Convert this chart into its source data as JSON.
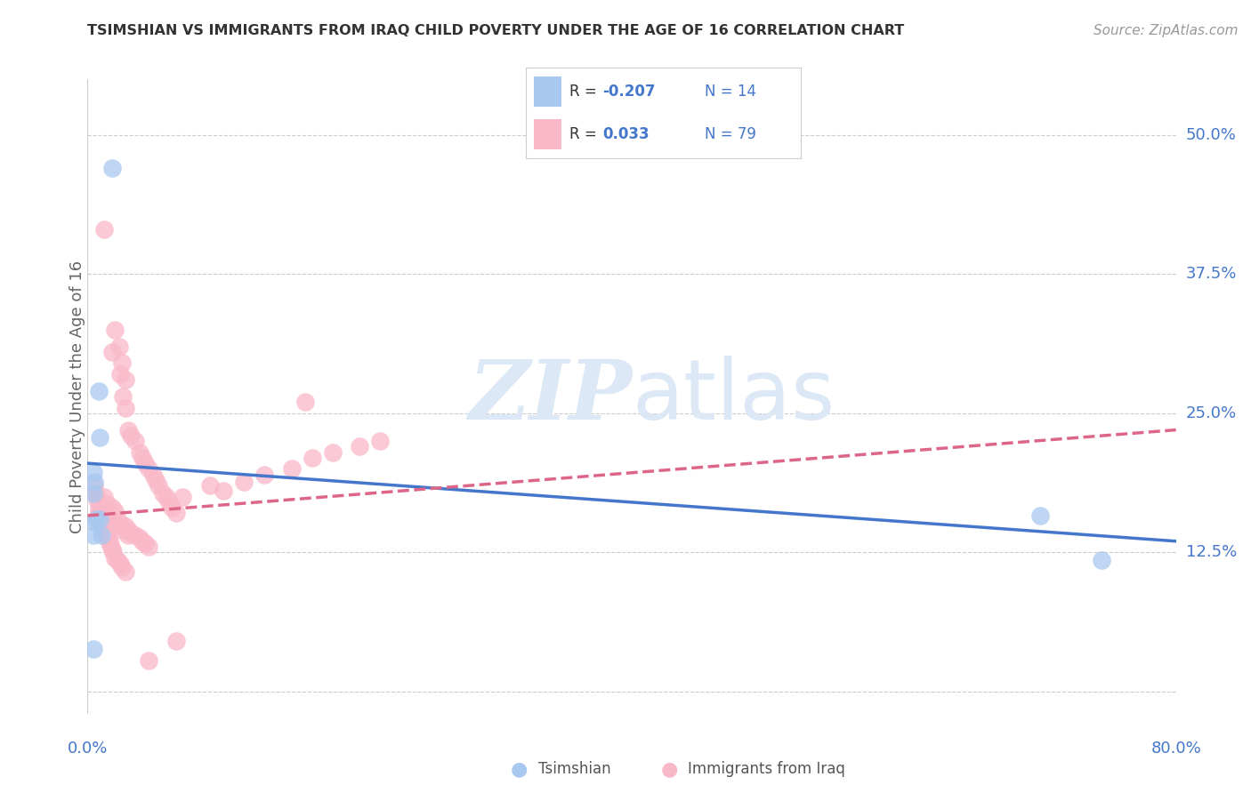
{
  "title": "TSIMSHIAN VS IMMIGRANTS FROM IRAQ CHILD POVERTY UNDER THE AGE OF 16 CORRELATION CHART",
  "source": "Source: ZipAtlas.com",
  "ylabel": "Child Poverty Under the Age of 16",
  "ytick_values": [
    0.0,
    0.125,
    0.25,
    0.375,
    0.5
  ],
  "ytick_labels": [
    "",
    "12.5%",
    "25.0%",
    "37.5%",
    "50.0%"
  ],
  "xlim": [
    0.0,
    0.8
  ],
  "ylim": [
    -0.02,
    0.55
  ],
  "color_tsimshian": "#a8c8f0",
  "color_iraq": "#f9b8c8",
  "color_line_tsimshian": "#4477cc",
  "color_line_iraq": "#dd6688",
  "background_color": "#ffffff",
  "tsimshian_x": [
    0.018,
    0.008,
    0.009,
    0.004,
    0.005,
    0.004,
    0.006,
    0.005,
    0.004,
    0.01,
    0.009,
    0.7,
    0.745,
    0.004
  ],
  "tsimshian_y": [
    0.47,
    0.27,
    0.228,
    0.197,
    0.188,
    0.178,
    0.155,
    0.152,
    0.14,
    0.14,
    0.155,
    0.158,
    0.118,
    0.038
  ],
  "iraq_x": [
    0.012,
    0.02,
    0.023,
    0.018,
    0.025,
    0.024,
    0.028,
    0.026,
    0.028,
    0.03,
    0.032,
    0.035,
    0.038,
    0.04,
    0.042,
    0.045,
    0.048,
    0.05,
    0.052,
    0.055,
    0.058,
    0.06,
    0.062,
    0.065,
    0.012,
    0.015,
    0.018,
    0.02,
    0.022,
    0.025,
    0.028,
    0.03,
    0.032,
    0.035,
    0.038,
    0.04,
    0.042,
    0.045,
    0.005,
    0.006,
    0.007,
    0.008,
    0.008,
    0.01,
    0.01,
    0.012,
    0.013,
    0.014,
    0.015,
    0.016,
    0.017,
    0.018,
    0.019,
    0.02,
    0.022,
    0.024,
    0.025,
    0.028,
    0.01,
    0.008,
    0.012,
    0.015,
    0.018,
    0.02,
    0.025,
    0.03,
    0.07,
    0.09,
    0.1,
    0.115,
    0.13,
    0.15,
    0.165,
    0.18,
    0.2,
    0.215,
    0.16,
    0.065,
    0.045
  ],
  "iraq_y": [
    0.415,
    0.325,
    0.31,
    0.305,
    0.295,
    0.285,
    0.28,
    0.265,
    0.255,
    0.235,
    0.23,
    0.225,
    0.215,
    0.21,
    0.205,
    0.2,
    0.195,
    0.19,
    0.185,
    0.178,
    0.175,
    0.17,
    0.165,
    0.16,
    0.175,
    0.168,
    0.165,
    0.162,
    0.155,
    0.15,
    0.148,
    0.145,
    0.142,
    0.14,
    0.138,
    0.135,
    0.133,
    0.13,
    0.185,
    0.178,
    0.172,
    0.168,
    0.163,
    0.158,
    0.152,
    0.148,
    0.145,
    0.142,
    0.138,
    0.135,
    0.132,
    0.128,
    0.125,
    0.12,
    0.118,
    0.115,
    0.112,
    0.108,
    0.165,
    0.162,
    0.158,
    0.155,
    0.15,
    0.148,
    0.145,
    0.14,
    0.175,
    0.185,
    0.18,
    0.188,
    0.195,
    0.2,
    0.21,
    0.215,
    0.22,
    0.225,
    0.26,
    0.045,
    0.028
  ],
  "tsim_line_x": [
    0.0,
    0.8
  ],
  "tsim_line_y": [
    0.205,
    0.135
  ],
  "iraq_line_x": [
    0.0,
    0.8
  ],
  "iraq_line_y": [
    0.158,
    0.235
  ]
}
